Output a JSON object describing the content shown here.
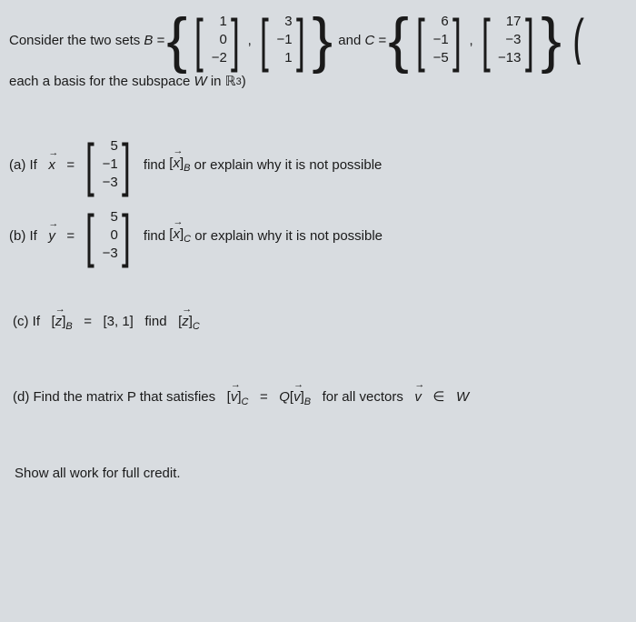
{
  "top": {
    "consider_text": "Consider the two sets",
    "B_sym": "B",
    "eq": "=",
    "and_text": "and",
    "C_sym": "C",
    "basis_text": "each a basis for the subspace",
    "W_sym": "W",
    "in_text": "in",
    "R3": "ℝ",
    "R3_sup": "3",
    "close_paren": ")",
    "B_v1": [
      "1",
      "0",
      "−2"
    ],
    "B_v2": [
      "3",
      "−1",
      "1"
    ],
    "C_v1": [
      "6",
      "−1",
      "−5"
    ],
    "C_v2": [
      "17",
      "−3",
      "−13"
    ],
    "comma": ","
  },
  "a": {
    "label": "(a) If",
    "x_sym": "x",
    "eq": "=",
    "vec": [
      "5",
      "−1",
      "−3"
    ],
    "find_text": "find",
    "coord_open": "[",
    "coord_x": "x",
    "coord_close": "]",
    "sub_B": "B",
    "tail": "or explain why it is not possible"
  },
  "b": {
    "label": "(b) If",
    "y_sym": "y",
    "eq": "=",
    "vec": [
      "5",
      "0",
      "−3"
    ],
    "find_text": "find",
    "coord_x": "x",
    "sub_C": "C",
    "tail": "or explain why it is not possible"
  },
  "c": {
    "text1": "(c) If",
    "z_sym": "z",
    "sub_B": "B",
    "eq": "=",
    "val": "[3, 1]",
    "find_text": "find",
    "sub_C": "C"
  },
  "d": {
    "text1": "(d) Find the matrix P that satisfies",
    "v_sym": "v",
    "sub_C": "C",
    "eq": "=",
    "Q_sym": "Q",
    "sub_B": "B",
    "tail": "for all vectors",
    "in_sym": "∈",
    "W_sym": "W"
  },
  "footer": "Show all work for full credit."
}
